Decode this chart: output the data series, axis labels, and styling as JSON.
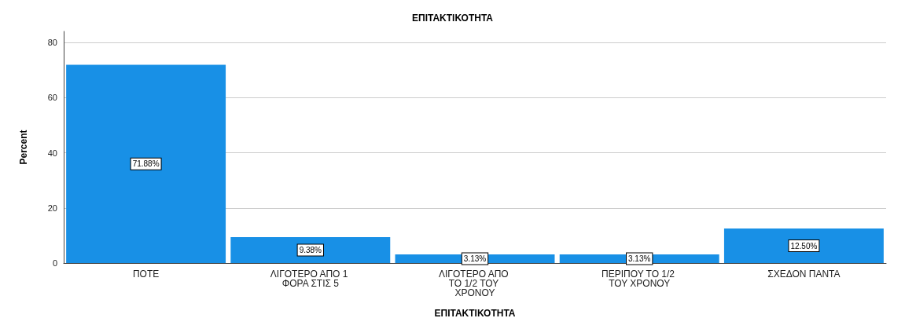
{
  "chart_data": {
    "type": "bar",
    "title": "ΕΠΙΤΑΚΤΙΚΟΤΗΤΑ",
    "xlabel": "ΕΠΙΤΑΚΤΙΚΟΤΗΤΑ",
    "ylabel": "Percent",
    "categories": [
      "ΠΟΤΕ",
      "ΛΙΓΟΤΕΡΟ ΑΠΟ 1 ΦΟΡΑ ΣΤΙΣ 5",
      "ΛΙΓΟΤΕΡΟ ΑΠΟ ΤΟ 1/2 ΤΟΥ ΧΡΟΝΟΥ",
      "ΠΕΡΙΠΟΥ ΤΟ 1/2 ΤΟΥ ΧΡΟΝΟΥ",
      "ΣΧΕΔΟΝ ΠΑΝΤΑ"
    ],
    "values": [
      71.88,
      9.38,
      3.13,
      3.13,
      12.5
    ],
    "value_labels": [
      "71.88%",
      "9.38%",
      "3.13%",
      "3.13%",
      "12.50%"
    ],
    "color": "#1890e6",
    "ylim": [
      0,
      84
    ],
    "yticks": [
      0,
      20,
      40,
      60,
      80
    ],
    "grid": "y"
  }
}
